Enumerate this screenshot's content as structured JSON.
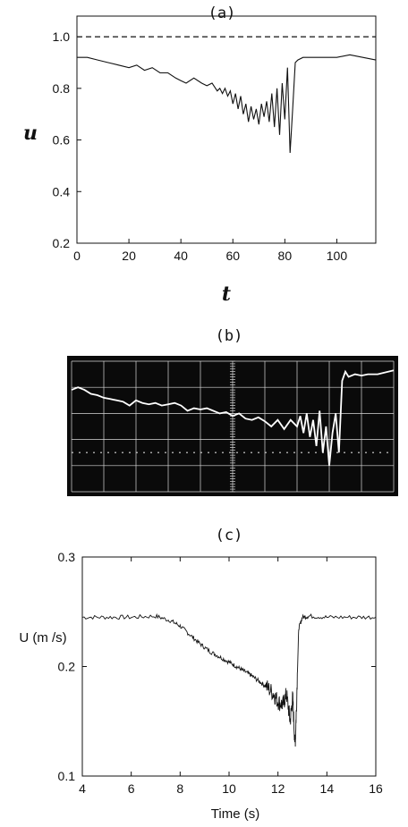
{
  "panel_labels": [
    "(a)",
    "(b)",
    "(c)"
  ],
  "chart_data": [
    {
      "type": "line",
      "panel": "(a)",
      "xlabel": "t",
      "ylabel": "u",
      "xlim": [
        0,
        115
      ],
      "ylim": [
        0.2,
        1.08
      ],
      "xticks": [
        0,
        20,
        40,
        60,
        80,
        100
      ],
      "yticks": [
        0.2,
        0.4,
        0.6,
        0.8,
        1.0
      ],
      "ytick_labels": [
        "0.2",
        "0.4",
        "0.6",
        "0.8",
        "1.0"
      ],
      "reference_line": {
        "y": 1.0,
        "style": "dashed"
      },
      "series": [
        {
          "x": [
            0,
            4,
            8,
            12,
            16,
            20,
            23,
            26,
            29,
            32,
            35,
            38,
            40,
            42,
            45,
            48,
            50,
            52,
            54,
            55,
            56,
            57,
            58,
            59,
            60,
            61,
            62,
            63,
            64,
            65,
            66,
            67,
            68,
            69,
            70,
            71,
            72,
            73,
            74,
            75,
            76,
            77,
            78,
            79,
            80,
            81,
            82,
            83,
            84,
            85,
            87,
            90,
            95,
            100,
            105,
            110,
            115
          ],
          "y": [
            0.92,
            0.92,
            0.91,
            0.9,
            0.89,
            0.88,
            0.89,
            0.87,
            0.88,
            0.86,
            0.86,
            0.84,
            0.83,
            0.82,
            0.84,
            0.82,
            0.81,
            0.82,
            0.79,
            0.8,
            0.78,
            0.8,
            0.77,
            0.79,
            0.74,
            0.78,
            0.72,
            0.77,
            0.7,
            0.74,
            0.67,
            0.73,
            0.68,
            0.72,
            0.66,
            0.74,
            0.69,
            0.75,
            0.67,
            0.78,
            0.65,
            0.8,
            0.62,
            0.82,
            0.68,
            0.88,
            0.55,
            0.72,
            0.9,
            0.91,
            0.92,
            0.92,
            0.92,
            0.92,
            0.93,
            0.92,
            0.91
          ]
        }
      ]
    },
    {
      "type": "line",
      "panel": "(b)",
      "description_visible": "oscilloscope trace",
      "grid": true,
      "colors": {
        "background": "#0a0a0a",
        "grid": "#d8d8d8",
        "trace": "#ffffff"
      },
      "series": [
        {
          "x": [
            0,
            2,
            4,
            6,
            8,
            10,
            12,
            14,
            16,
            18,
            20,
            22,
            24,
            26,
            28,
            30,
            32,
            34,
            36,
            38,
            40,
            42,
            44,
            46,
            48,
            50,
            52,
            54,
            56,
            58,
            60,
            62,
            64,
            66,
            68,
            70,
            71,
            72,
            73,
            74,
            75,
            76,
            77,
            78,
            79,
            80,
            81,
            82,
            83,
            84,
            85,
            86,
            88,
            90,
            92,
            95,
            100
          ],
          "y": [
            0.78,
            0.8,
            0.78,
            0.75,
            0.74,
            0.72,
            0.71,
            0.7,
            0.69,
            0.66,
            0.7,
            0.68,
            0.67,
            0.68,
            0.66,
            0.67,
            0.68,
            0.66,
            0.62,
            0.64,
            0.63,
            0.64,
            0.62,
            0.6,
            0.61,
            0.58,
            0.6,
            0.56,
            0.55,
            0.57,
            0.54,
            0.5,
            0.55,
            0.48,
            0.55,
            0.5,
            0.58,
            0.45,
            0.6,
            0.42,
            0.55,
            0.35,
            0.62,
            0.3,
            0.5,
            0.2,
            0.45,
            0.6,
            0.3,
            0.85,
            0.92,
            0.88,
            0.9,
            0.89,
            0.9,
            0.9,
            0.93
          ]
        }
      ]
    },
    {
      "type": "line",
      "panel": "(c)",
      "xlabel": "Time (s)",
      "ylabel": "U (m /s)",
      "xlim": [
        4,
        16
      ],
      "ylim": [
        0.1,
        0.3
      ],
      "xticks": [
        4,
        6,
        8,
        10,
        12,
        14,
        16
      ],
      "yticks": [
        0.1,
        0.2,
        0.3
      ],
      "series": [
        {
          "x": [
            4,
            5,
            6,
            7,
            7.6,
            8,
            8.4,
            8.8,
            9.2,
            9.6,
            10,
            10.3,
            10.6,
            10.9,
            11.2,
            11.5,
            11.8,
            12.0,
            12.2,
            12.35,
            12.5,
            12.6,
            12.7,
            12.75,
            12.85,
            13.0,
            13.3,
            14,
            15,
            16
          ],
          "y": [
            0.245,
            0.245,
            0.245,
            0.246,
            0.242,
            0.237,
            0.229,
            0.221,
            0.214,
            0.209,
            0.204,
            0.2,
            0.196,
            0.192,
            0.187,
            0.182,
            0.176,
            0.168,
            0.165,
            0.175,
            0.15,
            0.172,
            0.127,
            0.16,
            0.235,
            0.245,
            0.246,
            0.245,
            0.245,
            0.245
          ]
        }
      ]
    }
  ]
}
